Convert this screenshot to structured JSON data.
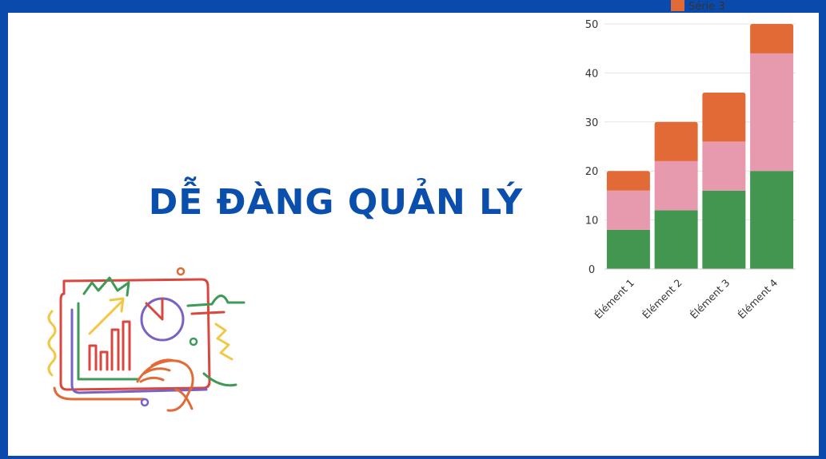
{
  "slide": {
    "title": "DỄ ĐÀNG QUẢN LÝ",
    "accent_color": "#0b4fad",
    "frame_color": "#0a4aad"
  },
  "illustration": {
    "icon": "hand-drawn-analytics-icon"
  },
  "chart_data": {
    "type": "bar",
    "stacked": true,
    "categories": [
      "Élément 1",
      "Élément 2",
      "Élément 3",
      "Élément 4"
    ],
    "series": [
      {
        "name": "",
        "color": "#43964f",
        "values": [
          8,
          12,
          16,
          20
        ]
      },
      {
        "name": "",
        "color": "#e79aae",
        "values": [
          8,
          10,
          10,
          24
        ]
      },
      {
        "name": "Série 3",
        "color": "#e26a36",
        "values": [
          4,
          8,
          10,
          6
        ]
      }
    ],
    "yticks": [
      "0",
      "10",
      "20",
      "30",
      "40",
      "50"
    ],
    "ylim": [
      0,
      50
    ],
    "grid": true,
    "legend": "top (partially cut off)"
  }
}
